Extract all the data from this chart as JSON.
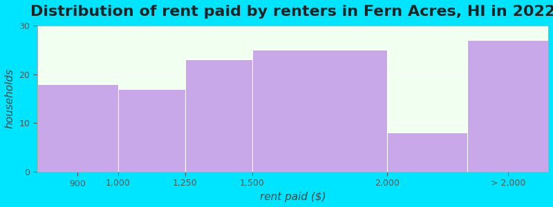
{
  "title": "Distribution of rent paid by renters in Fern Acres, HI in 2022",
  "xlabel": "rent paid ($)",
  "ylabel": "households",
  "bar_color": "#c8a8e8",
  "background_color": "#00e5ff",
  "plot_bg_color": "#f0fff0",
  "bar_edges": [
    700,
    1000,
    1250,
    1500,
    2000,
    2300,
    2600
  ],
  "bar_heights": [
    18,
    17,
    23,
    25,
    8,
    27
  ],
  "xtick_labels": [
    "900",
    "1,000",
    "1,250",
    "1,500",
    "2,000",
    "> 2,000"
  ],
  "xtick_positions": [
    850,
    1000,
    1250,
    1500,
    2000,
    2450
  ],
  "ylim": [
    0,
    30
  ],
  "yticks": [
    0,
    10,
    20,
    30
  ],
  "title_fontsize": 16,
  "axis_label_fontsize": 11
}
